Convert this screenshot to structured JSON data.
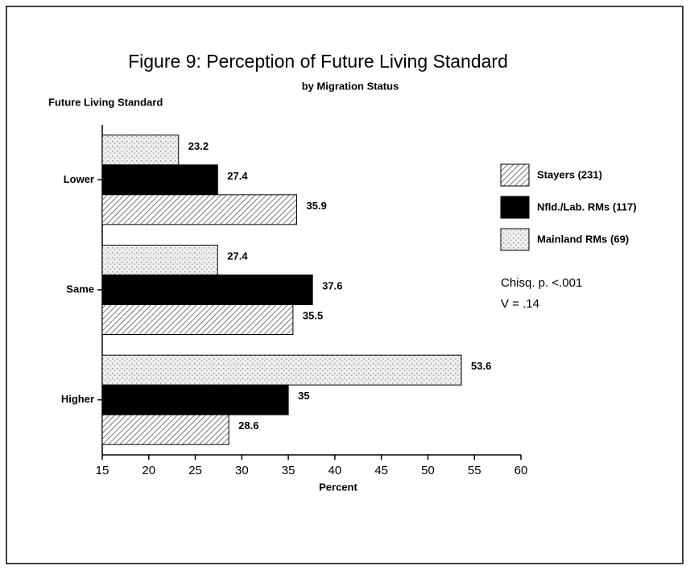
{
  "chart_data": {
    "type": "bar",
    "orientation": "horizontal",
    "title": "Figure 9: Perception of Future Living Standard",
    "subtitle": "by Migration Status",
    "y_label": "Future Living Standard",
    "x_label": "Percent",
    "categories": [
      "Lower",
      "Same",
      "Higher"
    ],
    "series": [
      {
        "name": "Mainland RMs (69)",
        "color": "#c8c8c8",
        "pattern": "stipple",
        "values": [
          23.2,
          27.4,
          53.6
        ]
      },
      {
        "name": "Nfld./Lab. RMs (117)",
        "color": "#000000",
        "pattern": "solid",
        "values": [
          27.4,
          37.6,
          35
        ]
      },
      {
        "name": "Stayers (231)",
        "color": "#555555",
        "pattern": "hatch",
        "values": [
          35.9,
          35.5,
          28.6
        ]
      }
    ],
    "legend_order": [
      2,
      1,
      0
    ],
    "legend": "right",
    "xlim": [
      15,
      60
    ],
    "xticks": [
      15,
      20,
      25,
      30,
      35,
      40,
      45,
      50,
      55,
      60
    ],
    "annotations": [
      "Chisq. p. <.001",
      "V = .14"
    ]
  }
}
